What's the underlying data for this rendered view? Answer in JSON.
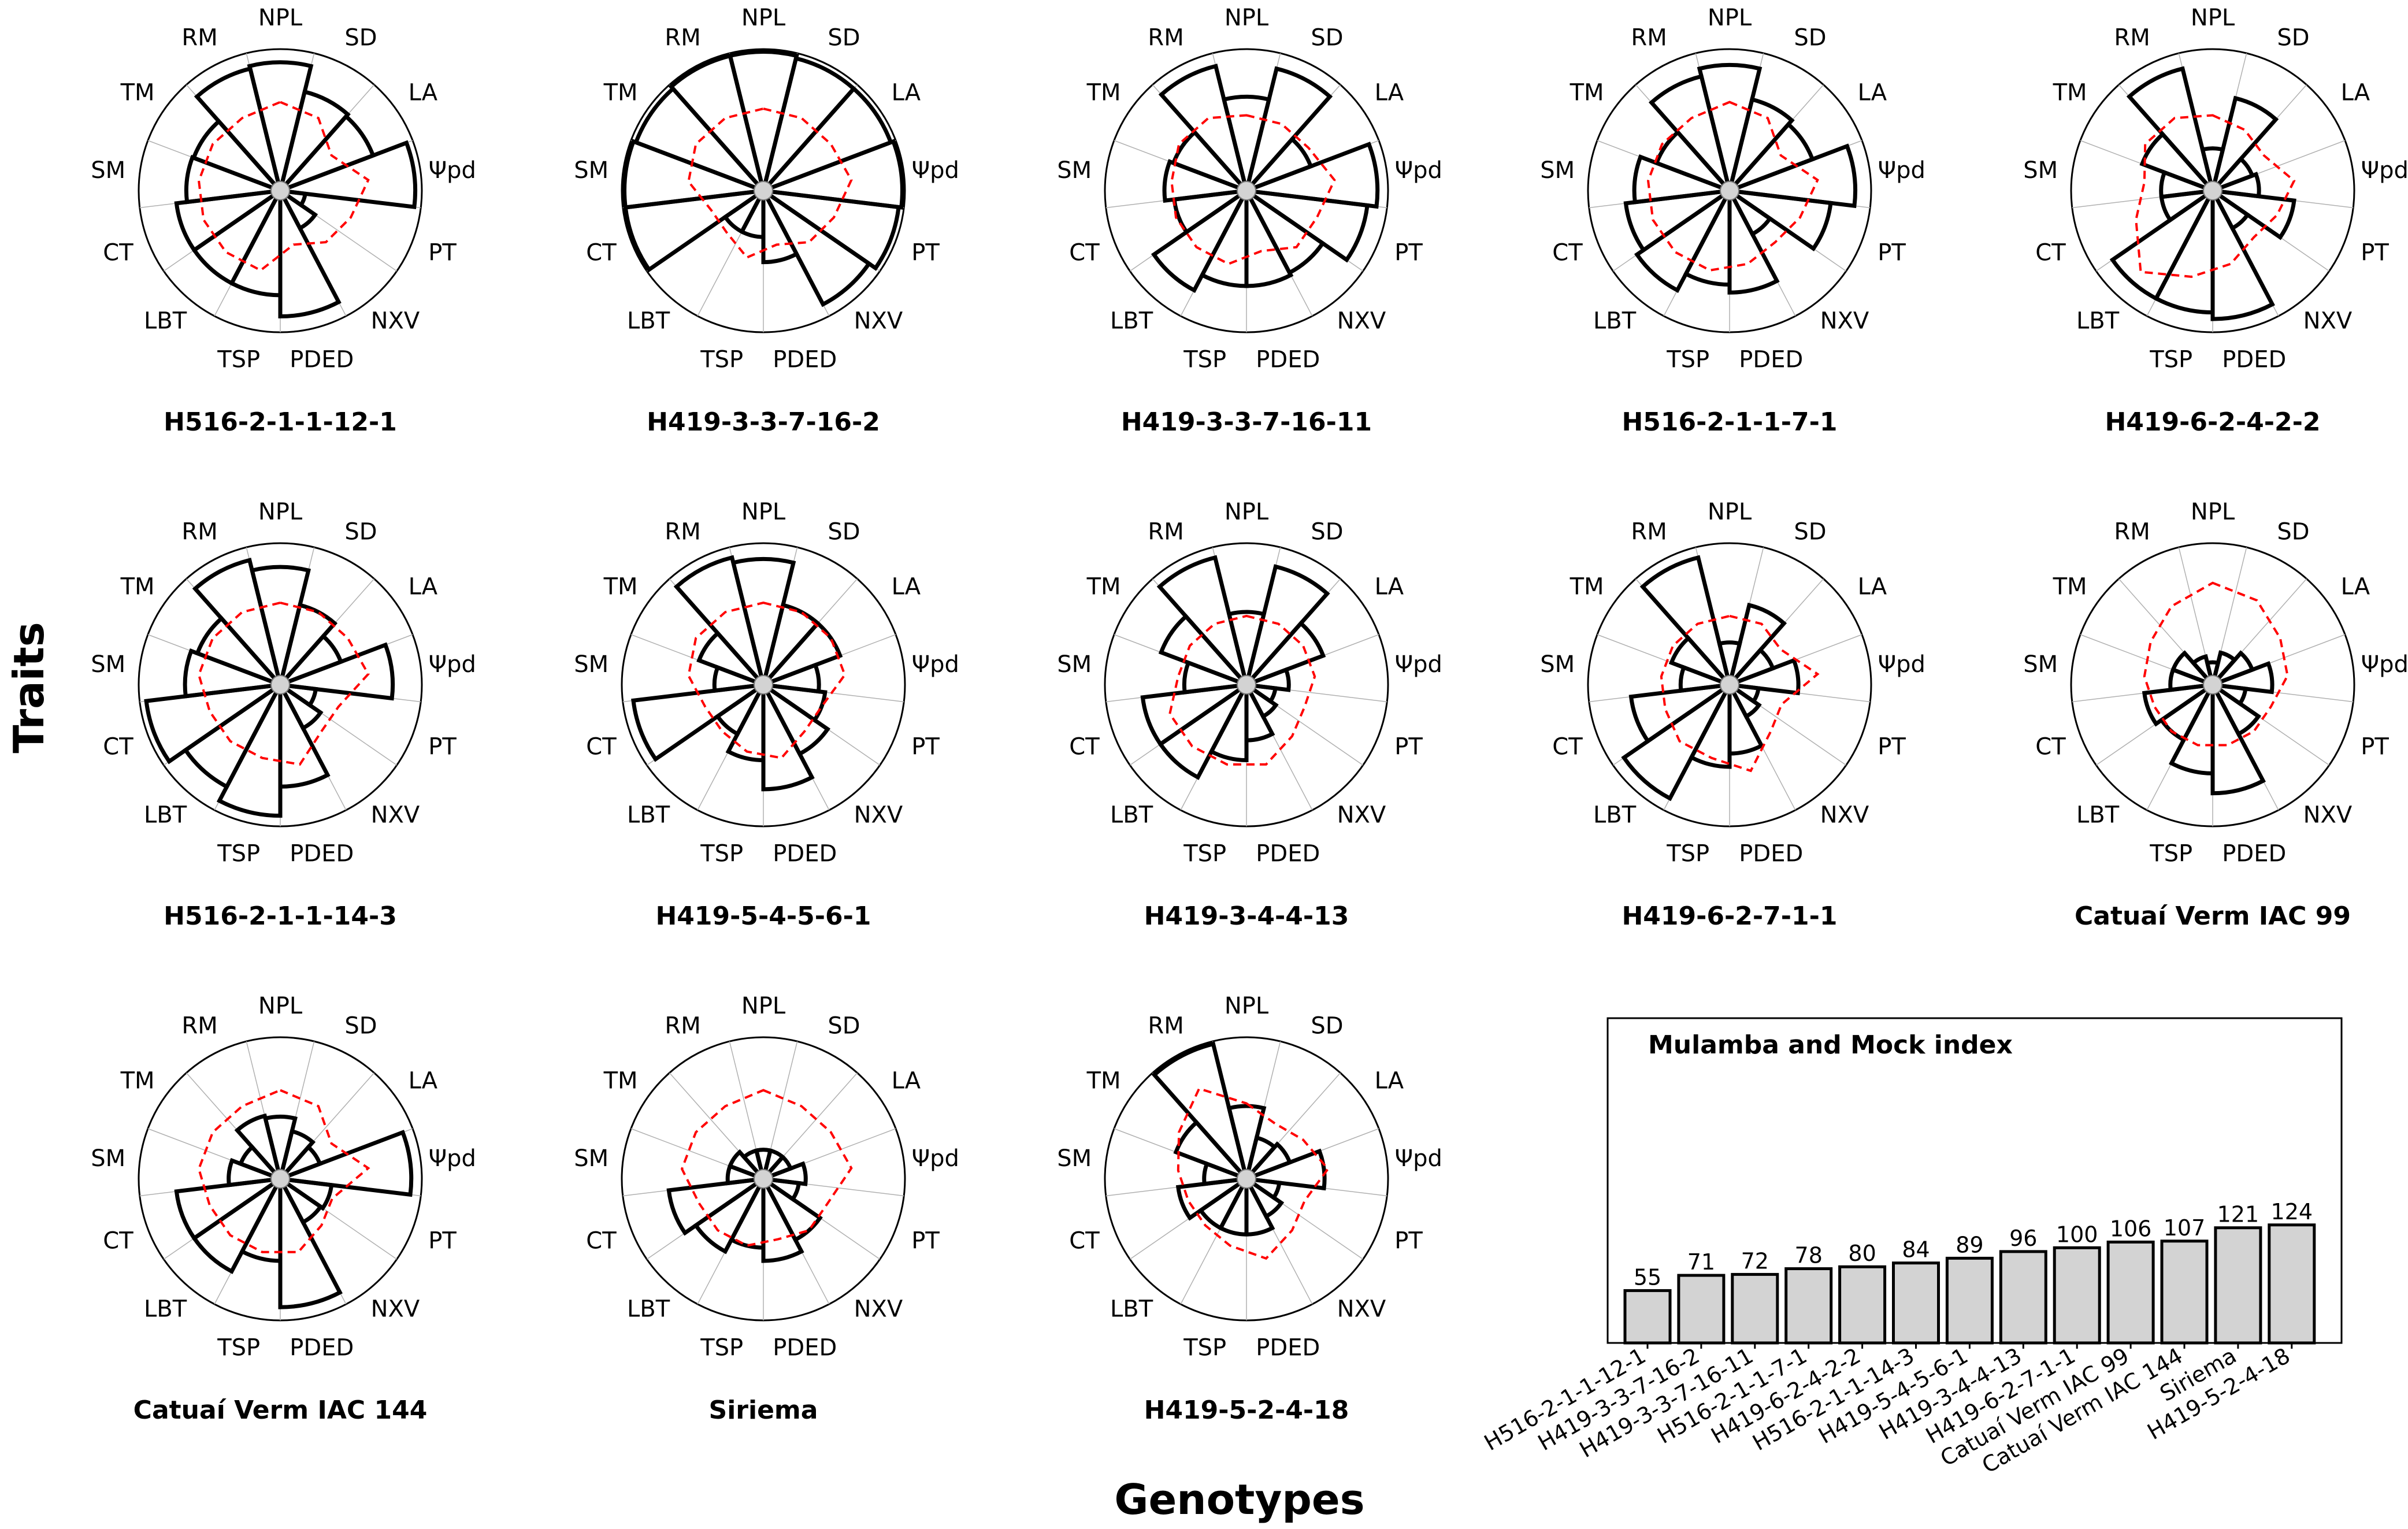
{
  "figure": {
    "y_label": "Traits",
    "x_label": "Genotypes"
  },
  "colors": {
    "bar_outline": "#000000",
    "bar_fill": "#d3d3d3",
    "reference_line": "#ff0000",
    "grid": "#b0b0b0"
  },
  "chart_data": [
    {
      "type": "radar-bar",
      "genotype_title": "H516-2-1-1-12-1",
      "traits": [
        "NPL",
        "SD",
        "LA",
        "Ψpd",
        "PT",
        "NXV",
        "PDED",
        "TSP",
        "LBT",
        "CT",
        "SM",
        "TM",
        "RM"
      ],
      "values": [
        0.9,
        0.7,
        0.68,
        0.95,
        0.12,
        0.25,
        0.88,
        0.72,
        0.72,
        0.72,
        0.64,
        0.63,
        0.88
      ],
      "reference": [
        0.6,
        0.55,
        0.4,
        0.6,
        0.5,
        0.45,
        0.35,
        0.55,
        0.55,
        0.55,
        0.55,
        0.55,
        0.55
      ]
    },
    {
      "type": "radar-bar",
      "genotype_title": "H419-3-3-7-16-2",
      "traits": [
        "NPL",
        "SD",
        "LA",
        "Ψpd",
        "PT",
        "NXV",
        "PDED",
        "TSP",
        "LBT",
        "CT",
        "SM",
        "TM",
        "RM"
      ],
      "values": [
        0.98,
        0.96,
        0.96,
        0.98,
        0.96,
        0.9,
        0.47,
        0.28,
        0.28,
        0.98,
        0.98,
        0.96,
        0.98
      ],
      "reference": [
        0.55,
        0.55,
        0.55,
        0.6,
        0.5,
        0.45,
        0.35,
        0.45,
        0.35,
        0.35,
        0.5,
        0.55,
        0.55
      ]
    },
    {
      "type": "radar-bar",
      "genotype_title": "H419-3-3-7-16-11",
      "traits": [
        "NPL",
        "SD",
        "LA",
        "Ψpd",
        "PT",
        "NXV",
        "PDED",
        "TSP",
        "LBT",
        "CT",
        "SM",
        "TM",
        "RM"
      ],
      "values": [
        0.64,
        0.88,
        0.45,
        0.92,
        0.85,
        0.63,
        0.65,
        0.65,
        0.78,
        0.48,
        0.55,
        0.52,
        0.9
      ],
      "reference": [
        0.5,
        0.5,
        0.5,
        0.6,
        0.5,
        0.5,
        0.4,
        0.5,
        0.5,
        0.5,
        0.5,
        0.55,
        0.55
      ]
    },
    {
      "type": "radar-bar",
      "genotype_title": "H516-2-1-1-7-1",
      "traits": [
        "NPL",
        "SD",
        "LA",
        "Ψpd",
        "PT",
        "NXV",
        "PDED",
        "TSP",
        "LBT",
        "CT",
        "SM",
        "TM",
        "RM"
      ],
      "values": [
        0.88,
        0.64,
        0.6,
        0.88,
        0.7,
        0.3,
        0.7,
        0.64,
        0.78,
        0.72,
        0.65,
        0.52,
        0.82
      ],
      "reference": [
        0.6,
        0.55,
        0.4,
        0.6,
        0.5,
        0.45,
        0.5,
        0.55,
        0.55,
        0.55,
        0.55,
        0.55,
        0.55
      ]
    },
    {
      "type": "radar-bar",
      "genotype_title": "H419-6-2-4-2-2",
      "traits": [
        "NPL",
        "SD",
        "LA",
        "Ψpd",
        "PT",
        "NXV",
        "PDED",
        "TSP",
        "LBT",
        "CT",
        "SM",
        "TM",
        "RM"
      ],
      "values": [
        0.25,
        0.65,
        0.25,
        0.28,
        0.55,
        0.25,
        0.9,
        0.85,
        0.85,
        0.32,
        0.32,
        0.5,
        0.88
      ],
      "reference": [
        0.5,
        0.45,
        0.4,
        0.55,
        0.45,
        0.4,
        0.5,
        0.6,
        0.75,
        0.55,
        0.45,
        0.55,
        0.55
      ]
    },
    {
      "type": "radar-bar",
      "genotype_title": "H516-2-1-1-14-3",
      "traits": [
        "NPL",
        "SD",
        "LA",
        "Ψpd",
        "PT",
        "NXV",
        "PDED",
        "TSP",
        "LBT",
        "CT",
        "SM",
        "TM",
        "RM"
      ],
      "values": [
        0.82,
        0.55,
        0.42,
        0.78,
        0.2,
        0.3,
        0.7,
        0.92,
        0.8,
        0.95,
        0.65,
        0.6,
        0.9
      ],
      "reference": [
        0.55,
        0.55,
        0.55,
        0.6,
        0.4,
        0.4,
        0.55,
        0.5,
        0.5,
        0.5,
        0.55,
        0.55,
        0.55
      ]
    },
    {
      "type": "radar-bar",
      "genotype_title": "H419-5-4-5-6-1",
      "traits": [
        "NPL",
        "SD",
        "LA",
        "Ψpd",
        "PT",
        "NXV",
        "PDED",
        "TSP",
        "LBT",
        "CT",
        "SM",
        "TM",
        "RM"
      ],
      "values": [
        0.88,
        0.55,
        0.55,
        0.35,
        0.4,
        0.52,
        0.72,
        0.5,
        0.35,
        0.92,
        0.3,
        0.45,
        0.92
      ],
      "reference": [
        0.55,
        0.55,
        0.55,
        0.55,
        0.4,
        0.4,
        0.5,
        0.45,
        0.4,
        0.4,
        0.5,
        0.55,
        0.55
      ]
    },
    {
      "type": "radar-bar",
      "genotype_title": "H419-3-4-4-13",
      "traits": [
        "NPL",
        "SD",
        "LA",
        "Ψpd",
        "PT",
        "NXV",
        "PDED",
        "TSP",
        "LBT",
        "CT",
        "SM",
        "TM",
        "RM"
      ],
      "values": [
        0.48,
        0.85,
        0.55,
        0.25,
        0.15,
        0.2,
        0.35,
        0.5,
        0.72,
        0.72,
        0.4,
        0.62,
        0.92
      ],
      "reference": [
        0.45,
        0.45,
        0.45,
        0.45,
        0.4,
        0.45,
        0.55,
        0.55,
        0.55,
        0.55,
        0.45,
        0.45,
        0.45
      ]
    },
    {
      "type": "radar-bar",
      "genotype_title": "H419-6-2-7-1-1",
      "traits": [
        "NPL",
        "SD",
        "LA",
        "Ψpd",
        "PT",
        "NXV",
        "PDED",
        "TSP",
        "LBT",
        "CT",
        "SM",
        "TM",
        "RM"
      ],
      "values": [
        0.25,
        0.55,
        0.28,
        0.45,
        0.15,
        0.2,
        0.45,
        0.55,
        0.9,
        0.68,
        0.3,
        0.4,
        0.92
      ],
      "reference": [
        0.45,
        0.45,
        0.4,
        0.6,
        0.35,
        0.4,
        0.6,
        0.5,
        0.5,
        0.45,
        0.45,
        0.45,
        0.45
      ]
    },
    {
      "type": "radar-bar",
      "genotype_title": "Catuaí Verm IAC 99",
      "traits": [
        "NPL",
        "SD",
        "LA",
        "Ψpd",
        "PT",
        "NXV",
        "PDED",
        "TSP",
        "LBT",
        "CT",
        "SM",
        "TM",
        "RM"
      ],
      "values": [
        0.1,
        0.18,
        0.25,
        0.38,
        0.18,
        0.35,
        0.75,
        0.6,
        0.4,
        0.45,
        0.25,
        0.25,
        0.15
      ],
      "reference": [
        0.7,
        0.65,
        0.55,
        0.5,
        0.4,
        0.4,
        0.4,
        0.4,
        0.4,
        0.4,
        0.45,
        0.5,
        0.6
      ]
    },
    {
      "type": "radar-bar",
      "genotype_title": "Catuaí Verm IAC 144",
      "traits": [
        "NPL",
        "SD",
        "LA",
        "Ψpd",
        "PT",
        "NXV",
        "PDED",
        "TSP",
        "LBT",
        "CT",
        "SM",
        "TM",
        "RM"
      ],
      "values": [
        0.4,
        0.3,
        0.25,
        0.92,
        0.32,
        0.3,
        0.9,
        0.55,
        0.72,
        0.72,
        0.32,
        0.25,
        0.42
      ],
      "reference": [
        0.6,
        0.55,
        0.4,
        0.6,
        0.35,
        0.4,
        0.5,
        0.5,
        0.5,
        0.5,
        0.55,
        0.55,
        0.55
      ]
    },
    {
      "type": "radar-bar",
      "genotype_title": "Siriema",
      "traits": [
        "NPL",
        "SD",
        "LA",
        "Ψpd",
        "PT",
        "NXV",
        "PDED",
        "TSP",
        "LBT",
        "CT",
        "SM",
        "TM",
        "RM"
      ],
      "values": [
        0.15,
        0.15,
        0.15,
        0.25,
        0.2,
        0.45,
        0.55,
        0.45,
        0.55,
        0.65,
        0.2,
        0.2,
        0.15
      ],
      "reference": [
        0.6,
        0.55,
        0.55,
        0.6,
        0.45,
        0.45,
        0.4,
        0.45,
        0.45,
        0.45,
        0.55,
        0.55,
        0.55
      ]
    },
    {
      "type": "radar-bar",
      "genotype_title": "H419-5-2-4-18",
      "traits": [
        "NPL",
        "SD",
        "LA",
        "Ψpd",
        "PT",
        "NXV",
        "PDED",
        "TSP",
        "LBT",
        "CT",
        "SM",
        "TM",
        "RM"
      ],
      "values": [
        0.48,
        0.25,
        0.28,
        0.52,
        0.18,
        0.25,
        0.35,
        0.35,
        0.35,
        0.45,
        0.25,
        0.5,
        0.98
      ],
      "reference": [
        0.5,
        0.4,
        0.45,
        0.55,
        0.4,
        0.45,
        0.55,
        0.45,
        0.4,
        0.4,
        0.45,
        0.55,
        0.7
      ]
    },
    {
      "type": "bar",
      "title": "Mulamba and Mock index",
      "categories": [
        "H516-2-1-1-12-1",
        "H419-3-3-7-16-2",
        "H419-3-3-7-16-11",
        "H516-2-1-1-7-1",
        "H419-6-2-4-2-2",
        "H516-2-1-1-14-3",
        "H419-5-4-5-6-1",
        "H419-3-4-4-13",
        "H419-6-2-7-1-1",
        "Catuaí Verm IAC 99",
        "Catuaí Verm IAC 144",
        "Siriema",
        "H419-5-2-4-18"
      ],
      "values": [
        55,
        71,
        72,
        78,
        80,
        84,
        89,
        96,
        100,
        106,
        107,
        121,
        124
      ],
      "ylim": [
        0,
        135
      ]
    }
  ]
}
